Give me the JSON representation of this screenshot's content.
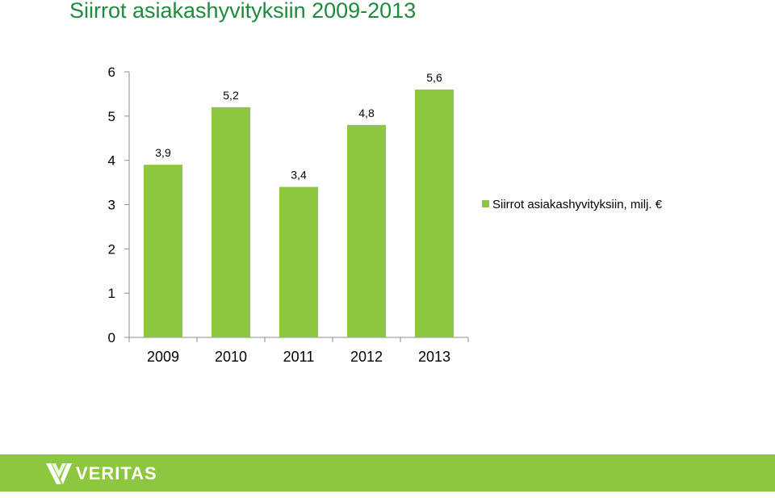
{
  "title": "Siirrot asiakashyvityksiin 2009-2013",
  "chart_data": {
    "type": "bar",
    "categories": [
      "2009",
      "2010",
      "2011",
      "2012",
      "2013"
    ],
    "series": [
      {
        "name": "Siirrot asiakashyvityksiin, milj. €",
        "values": [
          3.9,
          5.2,
          3.4,
          4.8,
          5.6
        ],
        "labels": [
          "3,9",
          "5,2",
          "3,4",
          "4,8",
          "5,6"
        ],
        "color": "#8dc63f"
      }
    ],
    "yticks": [
      "0",
      "1",
      "2",
      "3",
      "4",
      "5",
      "6"
    ],
    "ylim": [
      0,
      6
    ],
    "grid": false,
    "legend_position": "right"
  },
  "footer": {
    "brand": "VERITAS",
    "background": "#8dc63f"
  }
}
